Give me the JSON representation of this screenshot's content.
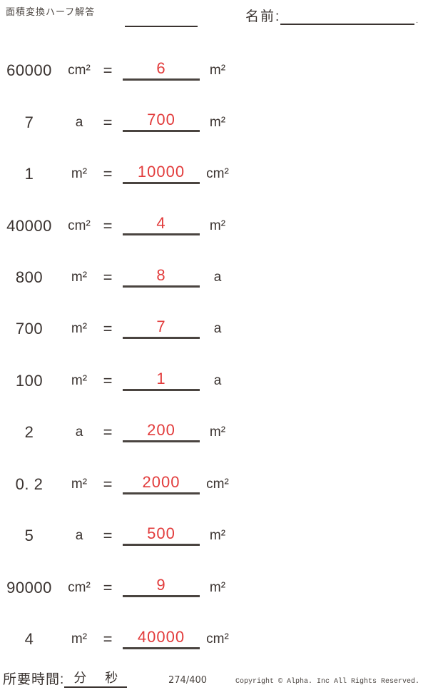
{
  "header": {
    "title": "面積変換ハーフ解答",
    "name_label": "名前:",
    "name_suffix": "."
  },
  "misc": {
    "equals_sign": "="
  },
  "problems": [
    {
      "value": "60000",
      "unit": "cm²",
      "answer": "6",
      "result_unit": "m²"
    },
    {
      "value": "7",
      "unit": "a",
      "answer": "700",
      "result_unit": "m²"
    },
    {
      "value": "1",
      "unit": "m²",
      "answer": "10000",
      "result_unit": "cm²"
    },
    {
      "value": "40000",
      "unit": "cm²",
      "answer": "4",
      "result_unit": "m²"
    },
    {
      "value": "800",
      "unit": "m²",
      "answer": "8",
      "result_unit": "a"
    },
    {
      "value": "700",
      "unit": "m²",
      "answer": "7",
      "result_unit": "a"
    },
    {
      "value": "100",
      "unit": "m²",
      "answer": "1",
      "result_unit": "a"
    },
    {
      "value": "2",
      "unit": "a",
      "answer": "200",
      "result_unit": "m²"
    },
    {
      "value": "0. 2",
      "unit": "m²",
      "answer": "2000",
      "result_unit": "cm²"
    },
    {
      "value": "5",
      "unit": "a",
      "answer": "500",
      "result_unit": "m²"
    },
    {
      "value": "90000",
      "unit": "cm²",
      "answer": "9",
      "result_unit": "m²"
    },
    {
      "value": "4",
      "unit": "m²",
      "answer": "40000",
      "result_unit": "cm²"
    }
  ],
  "footer": {
    "time_label": "所要時間:",
    "minutes_label": "分",
    "seconds_label": "秒",
    "page_indicator": "274/400",
    "copyright": "Copyright © Alpha. Inc All Rights Reserved."
  },
  "colors": {
    "answer_red": "#e23b3b",
    "ink": "#3a3330"
  }
}
